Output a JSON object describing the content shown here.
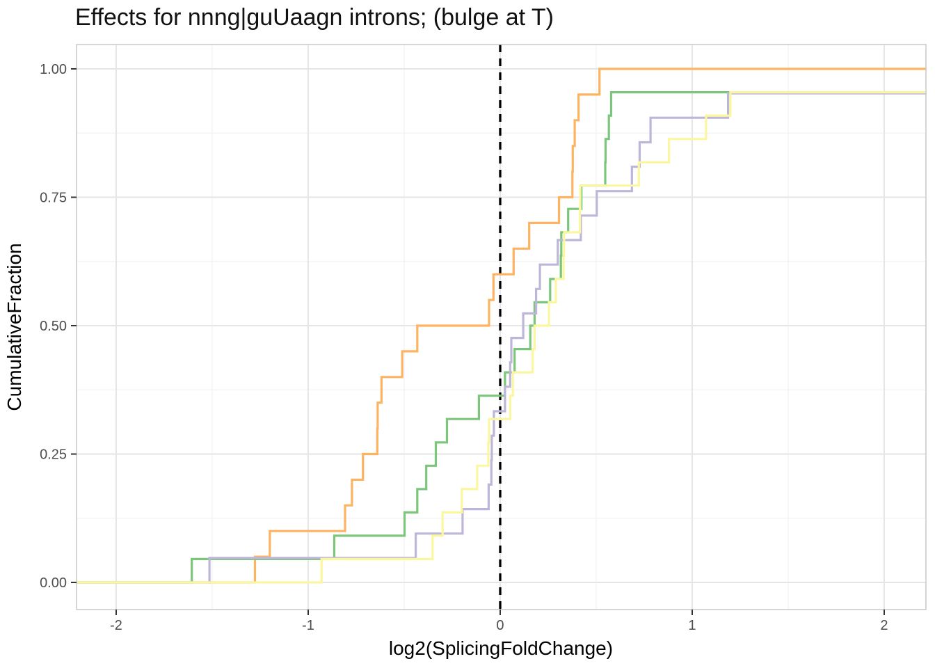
{
  "title": "Effects for nnng|guUaagn introns; (bulge at T)",
  "chart_data": {
    "type": "line",
    "subtype": "ecdf-step",
    "title": "Effects for nnng|guUaagn introns; (bulge at T)",
    "xlabel": "log2(SplicingFoldChange)",
    "ylabel": "CumulativeFraction",
    "xlim": [
      -2.2065,
      2.2174
    ],
    "ylim": [
      -0.0528,
      1.0474
    ],
    "grid": "major+minor",
    "legend_position": "none",
    "x_axis": {
      "tick_values": [
        -2,
        -1,
        0,
        1,
        2
      ],
      "tick_labels": [
        "-2",
        "-1",
        "0",
        "1",
        "2"
      ]
    },
    "y_axis": {
      "tick_values": [
        0,
        0.25,
        0.5,
        0.75,
        1.0
      ],
      "tick_labels": [
        "0.00",
        "0.25",
        "0.50",
        "0.75",
        "1.00"
      ]
    },
    "reference_line": {
      "x": 0,
      "style": "dashed",
      "color": "#000000"
    },
    "series": [
      {
        "name": "orange",
        "color": "#FDB462",
        "n_points": 20,
        "steps": [
          [
            -1.277,
            0.05
          ],
          [
            -1.2,
            0.1
          ],
          [
            -0.808,
            0.15
          ],
          [
            -0.772,
            0.2
          ],
          [
            -0.715,
            0.25
          ],
          [
            -0.64,
            0.3
          ],
          [
            -0.638,
            0.35
          ],
          [
            -0.618,
            0.4
          ],
          [
            -0.51,
            0.45
          ],
          [
            -0.432,
            0.5
          ],
          [
            -0.058,
            0.55
          ],
          [
            -0.035,
            0.6
          ],
          [
            0.07,
            0.65
          ],
          [
            0.151,
            0.7
          ],
          [
            0.306,
            0.75
          ],
          [
            0.376,
            0.8
          ],
          [
            0.378,
            0.85
          ],
          [
            0.388,
            0.9
          ],
          [
            0.408,
            0.95
          ],
          [
            0.517,
            1.0
          ]
        ]
      },
      {
        "name": "green",
        "color": "#7CC67C",
        "n_points": 22,
        "steps": [
          [
            -1.606,
            0.0455
          ],
          [
            -0.864,
            0.0909
          ],
          [
            -0.498,
            0.1364
          ],
          [
            -0.432,
            0.1818
          ],
          [
            -0.385,
            0.2273
          ],
          [
            -0.335,
            0.2727
          ],
          [
            -0.277,
            0.3182
          ],
          [
            -0.111,
            0.3636
          ],
          [
            0.025,
            0.4091
          ],
          [
            0.075,
            0.4545
          ],
          [
            0.157,
            0.5
          ],
          [
            0.179,
            0.5455
          ],
          [
            0.26,
            0.5909
          ],
          [
            0.316,
            0.6364
          ],
          [
            0.318,
            0.6818
          ],
          [
            0.354,
            0.7273
          ],
          [
            0.423,
            0.7727
          ],
          [
            0.547,
            0.8182
          ],
          [
            0.549,
            0.8636
          ],
          [
            0.566,
            0.9091
          ],
          [
            0.578,
            0.9545
          ]
        ]
      },
      {
        "name": "purple",
        "color": "#BEB6D9",
        "n_points": 21,
        "steps": [
          [
            -1.514,
            0.0476
          ],
          [
            -0.44,
            0.0952
          ],
          [
            -0.196,
            0.1429
          ],
          [
            -0.06,
            0.1905
          ],
          [
            -0.046,
            0.2381
          ],
          [
            -0.044,
            0.2857
          ],
          [
            -0.033,
            0.3333
          ],
          [
            0.025,
            0.381
          ],
          [
            0.052,
            0.4286
          ],
          [
            0.058,
            0.4762
          ],
          [
            0.12,
            0.5238
          ],
          [
            0.187,
            0.5714
          ],
          [
            0.207,
            0.619
          ],
          [
            0.3,
            0.6667
          ],
          [
            0.42,
            0.7143
          ],
          [
            0.503,
            0.7619
          ],
          [
            0.686,
            0.8095
          ],
          [
            0.726,
            0.8571
          ],
          [
            0.783,
            0.9048
          ],
          [
            1.187,
            0.9524
          ]
        ]
      },
      {
        "name": "yellow",
        "color": "#FBF7A0",
        "n_points": 22,
        "steps": [
          [
            -0.93,
            0.0455
          ],
          [
            -0.352,
            0.0909
          ],
          [
            -0.3,
            0.1364
          ],
          [
            -0.2,
            0.1818
          ],
          [
            -0.12,
            0.2273
          ],
          [
            -0.062,
            0.2727
          ],
          [
            -0.058,
            0.3182
          ],
          [
            0.052,
            0.3636
          ],
          [
            0.066,
            0.4091
          ],
          [
            0.169,
            0.4545
          ],
          [
            0.179,
            0.5
          ],
          [
            0.254,
            0.5455
          ],
          [
            0.29,
            0.5909
          ],
          [
            0.33,
            0.6364
          ],
          [
            0.333,
            0.6818
          ],
          [
            0.415,
            0.7273
          ],
          [
            0.417,
            0.7727
          ],
          [
            0.722,
            0.8182
          ],
          [
            0.879,
            0.8636
          ],
          [
            1.072,
            0.9091
          ],
          [
            1.199,
            0.9545
          ]
        ]
      }
    ],
    "colors": {
      "major_grid": "#E5E5E5",
      "minor_grid": "#F2F2F2",
      "panel_border": "#C9C9C9",
      "tick_mark": "#333333",
      "tick_label": "#4D4D4D",
      "reference": "#000000"
    }
  }
}
